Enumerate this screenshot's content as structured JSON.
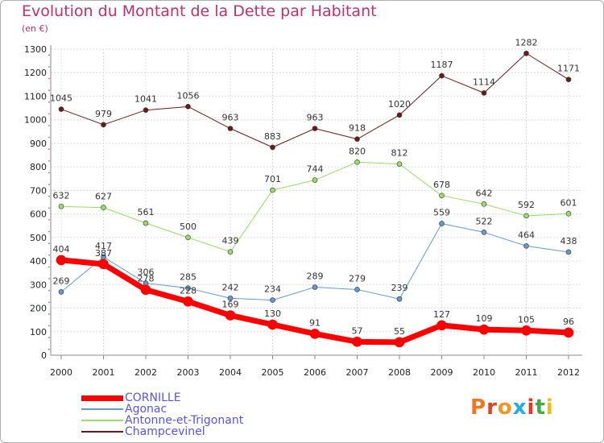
{
  "chart_data": {
    "type": "line",
    "title": "Evolution du Montant de la Dette par Habitant",
    "subtitle": "(en €)",
    "x": [
      "2000",
      "2001",
      "2002",
      "2003",
      "2004",
      "2005",
      "2006",
      "2007",
      "2008",
      "2009",
      "2010",
      "2011",
      "2012"
    ],
    "ylim": [
      0,
      1300
    ],
    "yticks": [
      0,
      100,
      200,
      300,
      400,
      500,
      600,
      700,
      800,
      900,
      1000,
      1100,
      1200,
      1300
    ],
    "grid": true,
    "legend_position": "bottom-left",
    "series": [
      {
        "name": "Champcevinel",
        "color": "#6b1a1a",
        "width": 1,
        "values": [
          1045,
          979,
          1041,
          1056,
          963,
          883,
          963,
          918,
          1020,
          1187,
          1114,
          1282,
          1171
        ]
      },
      {
        "name": "Antonne-et-Trigonant",
        "color": "#99dd66",
        "width": 1,
        "values": [
          632,
          627,
          561,
          500,
          439,
          701,
          744,
          820,
          812,
          678,
          642,
          592,
          601
        ]
      },
      {
        "name": "Agonac",
        "color": "#6699cc",
        "width": 1,
        "values": [
          269,
          417,
          306,
          285,
          242,
          234,
          289,
          279,
          239,
          559,
          522,
          464,
          438
        ]
      },
      {
        "name": "CORNILLE",
        "color": "#ff0000",
        "width": 7,
        "values": [
          404,
          387,
          278,
          228,
          169,
          130,
          91,
          57,
          55,
          127,
          109,
          105,
          96
        ]
      }
    ]
  },
  "legend": [
    {
      "name": "CORNILLE",
      "color": "#ff0000"
    },
    {
      "name": "Agonac",
      "color": "#6699cc"
    },
    {
      "name": "Antonne-et-Trigonant",
      "color": "#99dd66"
    },
    {
      "name": "Champcevinel",
      "color": "#6b1a1a"
    }
  ],
  "legend_text_color": "#5555ee",
  "logo": {
    "text": "Proxiti",
    "letter_colors": [
      "#ee7722",
      "#dd4422",
      "#ee9922",
      "#22aaee",
      "#ee3322",
      "#44aa44",
      "#eebb22"
    ]
  }
}
